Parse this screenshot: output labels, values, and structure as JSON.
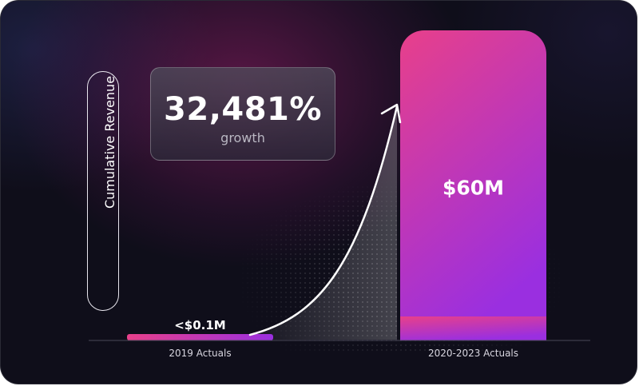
{
  "chart_data": {
    "type": "bar",
    "categories": [
      "2019 Actuals",
      "2020-2023 Actuals"
    ],
    "values": [
      0.1,
      60
    ],
    "value_labels": [
      "<$0.1M",
      "$60M"
    ],
    "ylabel": "Cumulative Revenue",
    "ylim": [
      0,
      60
    ],
    "grid": false,
    "annotation": {
      "value": "32,481%",
      "text": "growth"
    }
  },
  "colors": {
    "bar_gradient_top": "#e8408a",
    "bar_gradient_bottom": "#9a2fe0",
    "background": "#0f0e1a",
    "text": "#ffffff"
  }
}
